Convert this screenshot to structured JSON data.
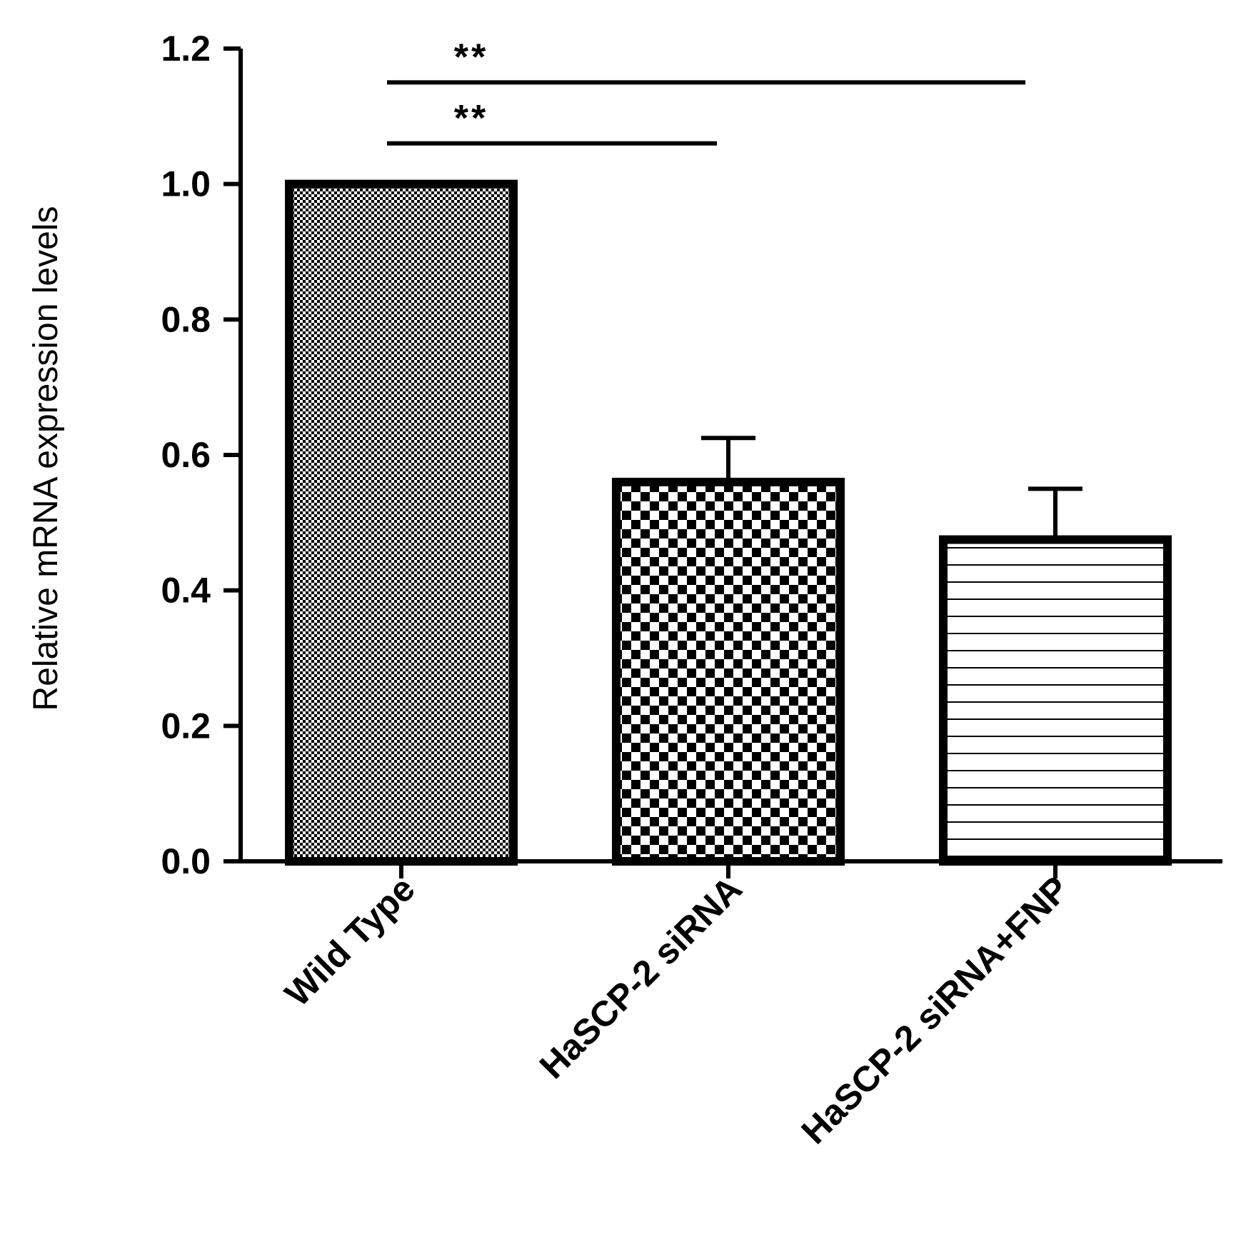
{
  "chart_data": {
    "type": "bar",
    "title": "",
    "xlabel": "",
    "ylabel": "Relative mRNA  expression levels",
    "ylim": [
      0,
      1.2
    ],
    "yticks": [
      "0.0",
      "0.2",
      "0.4",
      "0.6",
      "0.8",
      "1.0",
      "1.2"
    ],
    "categories": [
      "Wild Type",
      "HaSCP-2 siRNA",
      "HaSCP-2 siRNA+FNP"
    ],
    "values": [
      1.0,
      0.56,
      0.475
    ],
    "errors": [
      0.0,
      0.065,
      0.075
    ],
    "patterns": [
      "fine-dots",
      "checkerboard",
      "horizontal-lines"
    ],
    "significance": [
      {
        "from": 0,
        "to": 2,
        "label": "**",
        "y": 1.15
      },
      {
        "from": 0,
        "to": 1,
        "label": "**",
        "y": 1.06
      }
    ],
    "grid": false,
    "legend": "none",
    "colors": {
      "bar_outline": "#000000",
      "fill": "#ffffff"
    }
  }
}
